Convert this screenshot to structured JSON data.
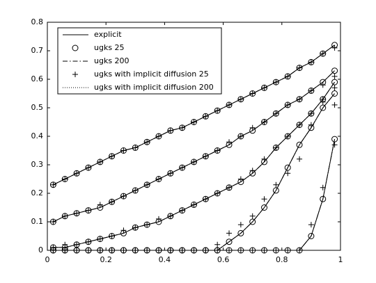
{
  "chart_data": {
    "type": "line",
    "xlim": [
      0,
      1
    ],
    "ylim": [
      0,
      0.8
    ],
    "xticks": [
      0,
      0.2,
      0.4,
      0.6,
      0.8,
      1
    ],
    "yticks": [
      0,
      0.1,
      0.2,
      0.3,
      0.4,
      0.5,
      0.6,
      0.7,
      0.8
    ],
    "x": [
      0.02,
      0.06,
      0.1,
      0.14,
      0.18,
      0.22,
      0.26,
      0.3,
      0.34,
      0.38,
      0.42,
      0.46,
      0.5,
      0.54,
      0.58,
      0.62,
      0.66,
      0.7,
      0.74,
      0.78,
      0.82,
      0.86,
      0.9,
      0.94,
      0.98
    ],
    "legend": "upper left",
    "series": [
      {
        "name": "explicit",
        "color": "#000000",
        "style": "solid",
        "marker": "none",
        "curves": [
          [
            0.23,
            0.25,
            0.27,
            0.29,
            0.31,
            0.33,
            0.35,
            0.36,
            0.38,
            0.4,
            0.42,
            0.43,
            0.45,
            0.47,
            0.49,
            0.51,
            0.53,
            0.55,
            0.57,
            0.59,
            0.61,
            0.64,
            0.66,
            0.69,
            0.72
          ],
          [
            0.1,
            0.12,
            0.13,
            0.14,
            0.15,
            0.17,
            0.19,
            0.21,
            0.23,
            0.25,
            0.27,
            0.29,
            0.31,
            0.33,
            0.35,
            0.37,
            0.4,
            0.42,
            0.45,
            0.48,
            0.51,
            0.53,
            0.56,
            0.59,
            0.63
          ],
          [
            0.01,
            0.01,
            0.02,
            0.03,
            0.04,
            0.05,
            0.06,
            0.08,
            0.09,
            0.1,
            0.12,
            0.14,
            0.16,
            0.18,
            0.2,
            0.22,
            0.24,
            0.27,
            0.31,
            0.36,
            0.4,
            0.44,
            0.48,
            0.53,
            0.59
          ],
          [
            0,
            0,
            0,
            0,
            0,
            0,
            0,
            0,
            0,
            0,
            0,
            0,
            0,
            0,
            0,
            0.03,
            0.06,
            0.1,
            0.15,
            0.21,
            0.29,
            0.37,
            0.43,
            0.5,
            0.55
          ],
          [
            0,
            0,
            0,
            0,
            0,
            0,
            0,
            0,
            0,
            0,
            0,
            0,
            0,
            0,
            0,
            0,
            0,
            0,
            0,
            0,
            0,
            0,
            0.05,
            0.18,
            0.39
          ]
        ]
      },
      {
        "name": "ugks 25",
        "color": "#000000",
        "style": "none",
        "marker": "circle",
        "curves": [
          [
            0.23,
            0.25,
            0.27,
            0.29,
            0.31,
            0.33,
            0.35,
            0.36,
            0.38,
            0.4,
            0.42,
            0.43,
            0.45,
            0.47,
            0.49,
            0.51,
            0.53,
            0.55,
            0.57,
            0.59,
            0.61,
            0.64,
            0.66,
            0.69,
            0.72
          ],
          [
            0.1,
            0.12,
            0.13,
            0.14,
            0.15,
            0.17,
            0.19,
            0.21,
            0.23,
            0.25,
            0.27,
            0.29,
            0.31,
            0.33,
            0.35,
            0.37,
            0.4,
            0.42,
            0.45,
            0.48,
            0.51,
            0.53,
            0.56,
            0.59,
            0.63
          ],
          [
            0.01,
            0.01,
            0.02,
            0.03,
            0.04,
            0.05,
            0.06,
            0.08,
            0.09,
            0.1,
            0.12,
            0.14,
            0.16,
            0.18,
            0.2,
            0.22,
            0.24,
            0.27,
            0.31,
            0.36,
            0.4,
            0.44,
            0.48,
            0.53,
            0.59
          ],
          [
            0,
            0,
            0,
            0,
            0,
            0,
            0,
            0,
            0,
            0,
            0,
            0,
            0,
            0,
            0,
            0.03,
            0.06,
            0.1,
            0.15,
            0.21,
            0.29,
            0.37,
            0.43,
            0.5,
            0.55
          ],
          [
            0,
            0,
            0,
            0,
            0,
            0,
            0,
            0,
            0,
            0,
            0,
            0,
            0,
            0,
            0,
            0,
            0,
            0,
            0,
            0,
            0,
            0,
            0.05,
            0.18,
            0.39
          ]
        ]
      },
      {
        "name": "ugks 200",
        "color": "#000000",
        "style": "dashdot",
        "marker": "none",
        "curves": [
          [
            0.23,
            0.25,
            0.27,
            0.29,
            0.31,
            0.33,
            0.35,
            0.36,
            0.38,
            0.4,
            0.42,
            0.43,
            0.45,
            0.47,
            0.49,
            0.51,
            0.53,
            0.55,
            0.57,
            0.59,
            0.61,
            0.64,
            0.66,
            0.69,
            0.72
          ],
          [
            0.1,
            0.12,
            0.13,
            0.14,
            0.15,
            0.17,
            0.19,
            0.21,
            0.23,
            0.25,
            0.27,
            0.29,
            0.31,
            0.33,
            0.35,
            0.37,
            0.4,
            0.42,
            0.45,
            0.48,
            0.51,
            0.53,
            0.56,
            0.59,
            0.63
          ],
          [
            0.01,
            0.01,
            0.02,
            0.03,
            0.04,
            0.05,
            0.06,
            0.08,
            0.09,
            0.1,
            0.12,
            0.14,
            0.16,
            0.18,
            0.2,
            0.22,
            0.24,
            0.27,
            0.31,
            0.36,
            0.4,
            0.44,
            0.48,
            0.53,
            0.59
          ],
          [
            0,
            0,
            0,
            0,
            0,
            0,
            0,
            0,
            0,
            0,
            0,
            0,
            0,
            0,
            0,
            0.03,
            0.06,
            0.1,
            0.15,
            0.21,
            0.29,
            0.37,
            0.43,
            0.5,
            0.55
          ],
          [
            0,
            0,
            0,
            0,
            0,
            0,
            0,
            0,
            0,
            0,
            0,
            0,
            0,
            0,
            0,
            0,
            0,
            0,
            0,
            0,
            0,
            0,
            0.05,
            0.18,
            0.39
          ]
        ]
      },
      {
        "name": "ugks with implicit diffusion 25",
        "color": "#000000",
        "style": "none",
        "marker": "plus",
        "curves": [
          [
            0.23,
            0.25,
            0.27,
            0.29,
            0.31,
            0.33,
            0.35,
            0.36,
            0.38,
            0.4,
            0.42,
            0.43,
            0.45,
            0.47,
            0.49,
            0.51,
            0.53,
            0.55,
            0.57,
            0.59,
            0.61,
            0.64,
            0.66,
            0.69,
            0.71
          ],
          [
            0.1,
            0.12,
            0.13,
            0.14,
            0.16,
            0.17,
            0.19,
            0.21,
            0.23,
            0.25,
            0.27,
            0.29,
            0.31,
            0.33,
            0.35,
            0.38,
            0.4,
            0.43,
            0.45,
            0.48,
            0.51,
            0.53,
            0.56,
            0.58,
            0.61
          ],
          [
            0.01,
            0.02,
            0.02,
            0.03,
            0.04,
            0.05,
            0.07,
            0.08,
            0.09,
            0.11,
            0.12,
            0.14,
            0.16,
            0.18,
            0.2,
            0.22,
            0.25,
            0.28,
            0.32,
            0.36,
            0.4,
            0.44,
            0.48,
            0.52,
            0.57
          ],
          [
            0,
            0,
            0,
            0,
            0,
            0,
            0,
            0,
            0,
            0,
            0,
            0,
            0,
            0,
            0.02,
            0.06,
            0.09,
            0.12,
            0.18,
            0.23,
            0.27,
            0.32,
            0.44,
            0.53,
            0.51
          ],
          [
            0,
            0,
            0,
            0,
            0,
            0,
            0,
            0,
            0,
            0,
            0,
            0,
            0,
            0,
            0,
            0,
            0,
            0,
            0,
            0,
            0,
            0,
            0.09,
            0.22,
            0.37
          ]
        ]
      },
      {
        "name": "ugks with implicit diffusion 200",
        "color": "#000000",
        "style": "dotted",
        "marker": "none",
        "curves": [
          [
            0.23,
            0.25,
            0.27,
            0.29,
            0.31,
            0.33,
            0.35,
            0.36,
            0.38,
            0.4,
            0.42,
            0.43,
            0.45,
            0.47,
            0.49,
            0.51,
            0.53,
            0.55,
            0.57,
            0.59,
            0.61,
            0.64,
            0.66,
            0.69,
            0.72
          ],
          [
            0.1,
            0.12,
            0.13,
            0.14,
            0.15,
            0.17,
            0.19,
            0.21,
            0.23,
            0.25,
            0.27,
            0.29,
            0.31,
            0.33,
            0.35,
            0.37,
            0.4,
            0.42,
            0.45,
            0.48,
            0.51,
            0.53,
            0.56,
            0.59,
            0.63
          ],
          [
            0.01,
            0.01,
            0.02,
            0.03,
            0.04,
            0.05,
            0.06,
            0.08,
            0.09,
            0.1,
            0.12,
            0.14,
            0.16,
            0.18,
            0.2,
            0.22,
            0.24,
            0.27,
            0.31,
            0.36,
            0.4,
            0.44,
            0.48,
            0.53,
            0.59
          ],
          [
            0,
            0,
            0,
            0,
            0,
            0,
            0,
            0,
            0,
            0,
            0,
            0,
            0,
            0,
            0,
            0.03,
            0.06,
            0.1,
            0.15,
            0.21,
            0.29,
            0.37,
            0.43,
            0.5,
            0.55
          ],
          [
            0,
            0,
            0,
            0,
            0,
            0,
            0,
            0,
            0,
            0,
            0,
            0,
            0,
            0,
            0,
            0,
            0,
            0,
            0,
            0,
            0,
            0,
            0.05,
            0.18,
            0.39
          ]
        ]
      }
    ]
  }
}
